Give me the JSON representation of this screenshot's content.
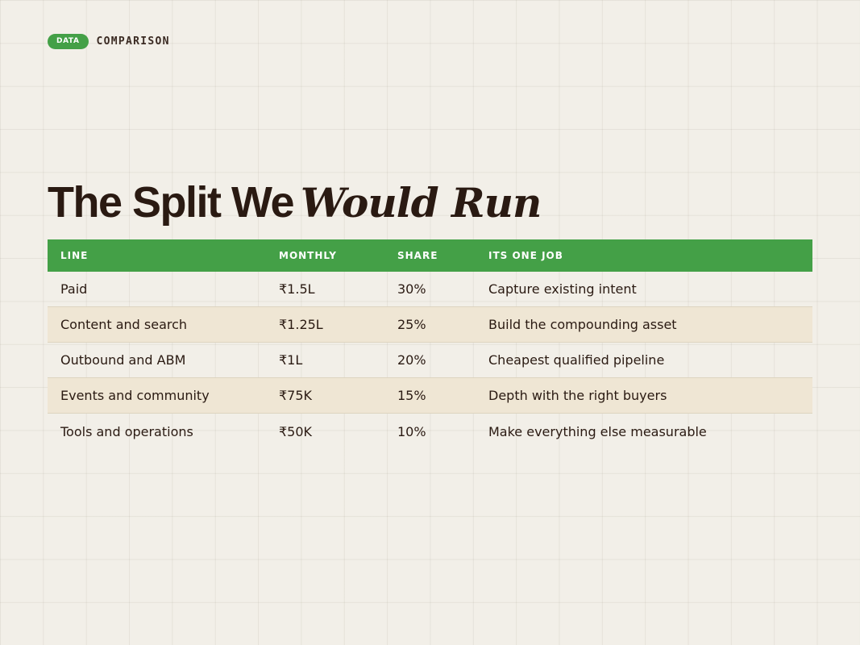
{
  "eyebrow": {
    "badge": "DATA",
    "label": "COMPARISON"
  },
  "title": {
    "main": "The Split We",
    "accent": "Would Run"
  },
  "colors": {
    "accent": "#44a047",
    "background": "#f2efe8",
    "row_alt": "#efe6d4",
    "text": "#2a1a12"
  },
  "table": {
    "headers": [
      "LINE",
      "MONTHLY",
      "SHARE",
      "ITS ONE JOB"
    ],
    "rows": [
      [
        "Paid",
        "₹1.5L",
        "30%",
        "Capture existing intent"
      ],
      [
        "Content and search",
        "₹1.25L",
        "25%",
        "Build the compounding asset"
      ],
      [
        "Outbound and ABM",
        "₹1L",
        "20%",
        "Cheapest qualified pipeline"
      ],
      [
        "Events and community",
        "₹75K",
        "15%",
        "Depth with the right buyers"
      ],
      [
        "Tools and operations",
        "₹50K",
        "10%",
        "Make everything else measurable"
      ]
    ]
  }
}
